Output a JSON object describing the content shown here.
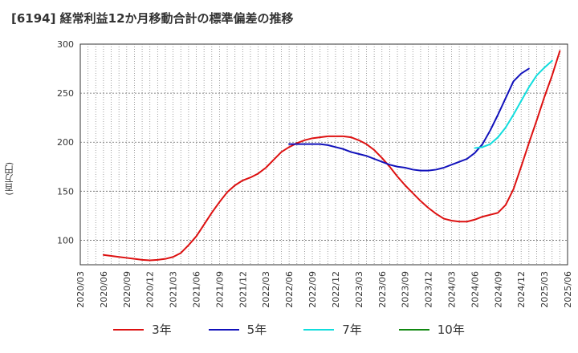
{
  "title": "[6194]  経常利益12か月移動合計の標準偏差の推移",
  "y_unit": "(百万円)",
  "chart_data": {
    "type": "line",
    "title": "[6194]  経常利益12か月移動合計の標準偏差の推移",
    "ylabel": "(百万円)",
    "xlabel": "",
    "ylim": [
      75,
      300
    ],
    "yticks": [
      100,
      150,
      200,
      250,
      300
    ],
    "x_tick_labels": [
      "2020/03",
      "2020/06",
      "2020/09",
      "2020/12",
      "2021/03",
      "2021/06",
      "2021/09",
      "2021/12",
      "2022/03",
      "2022/06",
      "2022/09",
      "2022/12",
      "2023/03",
      "2023/06",
      "2023/09",
      "2023/12",
      "2024/03",
      "2024/06",
      "2024/09",
      "2024/12",
      "2025/03",
      "2025/06"
    ],
    "x_start": "2020/03",
    "grid": true,
    "legend_position": "bottom",
    "series": [
      {
        "name": "3年",
        "color": "#dd1111",
        "start": "2020/06",
        "values": [
          85,
          84,
          83,
          82,
          81,
          80,
          79.5,
          80,
          81,
          83,
          87,
          95,
          104,
          116,
          128,
          139,
          149,
          156,
          161,
          164,
          168,
          174,
          182,
          190,
          195,
          199,
          202,
          204,
          205,
          206,
          206,
          206,
          205,
          202,
          198,
          192,
          184,
          175,
          165,
          156,
          148,
          140,
          133,
          127,
          122,
          120,
          119,
          119,
          121,
          124,
          126,
          128,
          136,
          152,
          175,
          199,
          222,
          246,
          268,
          293
        ]
      },
      {
        "name": "5年",
        "color": "#1111bb",
        "start": "2022/06",
        "values": [
          198,
          198,
          198,
          198,
          198,
          197,
          195,
          193,
          190,
          188,
          186,
          183,
          180,
          177,
          175,
          174,
          172,
          171,
          171,
          172,
          174,
          177,
          180,
          183,
          189,
          198,
          212,
          228,
          245,
          262,
          270,
          275
        ]
      },
      {
        "name": "7年",
        "color": "#11dddd",
        "start": "2024/06",
        "values": [
          194,
          195,
          198,
          205,
          215,
          228,
          242,
          256,
          268,
          276,
          283
        ]
      },
      {
        "name": "10年",
        "color": "#118811",
        "start": "2025/03",
        "values": []
      }
    ]
  }
}
